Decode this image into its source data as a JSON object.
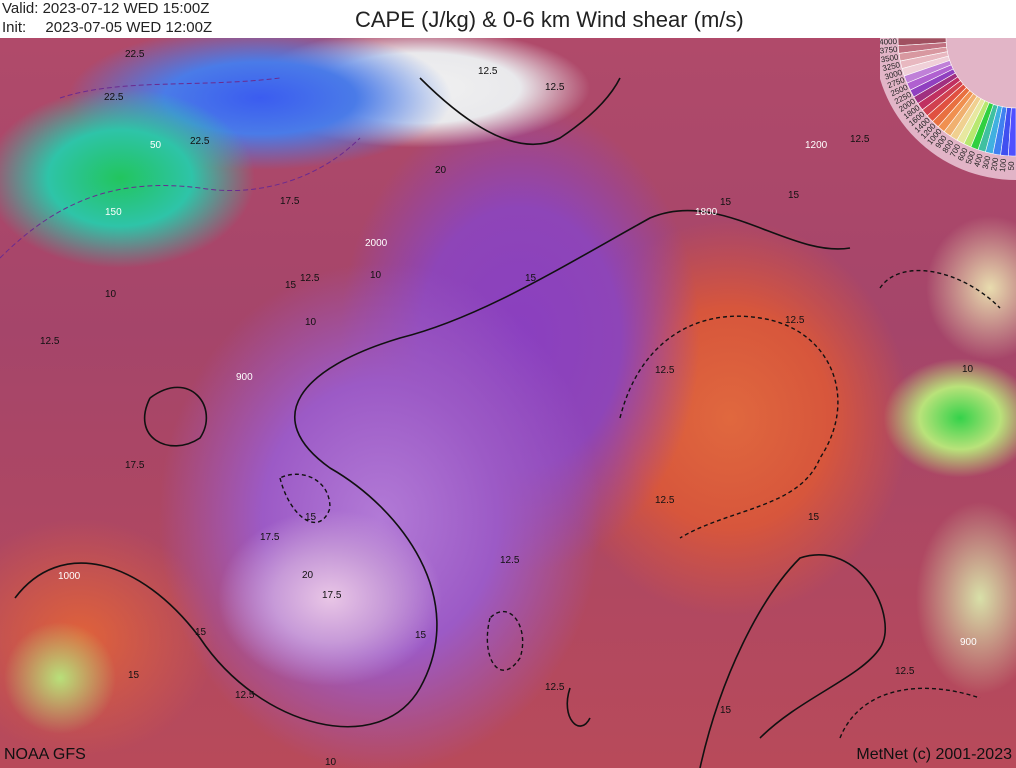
{
  "header": {
    "valid_label": "Valid:",
    "valid_time": "2023-07-12 WED 15:00Z",
    "init_label": "Init:",
    "init_time": "2023-07-05 WED 12:00Z",
    "title": "CAPE (J/kg) & 0-6 km Wind shear (m/s)"
  },
  "legend": {
    "values": [
      "4000",
      "3750",
      "3500",
      "3250",
      "3000",
      "2750",
      "2500",
      "2250",
      "2000",
      "1800",
      "1600",
      "1400",
      "1200",
      "1000",
      "900",
      "800",
      "700",
      "600",
      "500",
      "400",
      "300",
      "200",
      "100",
      "50"
    ],
    "colors": [
      "#a05060",
      "#c07080",
      "#d898a0",
      "#e8b8c0",
      "#f0d0d8",
      "#c080d8",
      "#b060d0",
      "#9040c0",
      "#a03080",
      "#c03060",
      "#d04050",
      "#e05040",
      "#e87040",
      "#f09050",
      "#f0b070",
      "#f0d090",
      "#e8e8a0",
      "#b8e870",
      "#30d040",
      "#40c0a0",
      "#40b0e0",
      "#4080f0",
      "#4050f0",
      "#5050ff"
    ]
  },
  "map": {
    "cape_labels": [
      "50",
      "150",
      "2000",
      "900",
      "1200",
      "1800",
      "1000",
      "900"
    ],
    "shear_labels": [
      "22.5",
      "22.5",
      "22.5",
      "20",
      "17.5",
      "12.5",
      "10",
      "15",
      "12.5",
      "10",
      "15",
      "12.5",
      "12.5",
      "15",
      "12.5",
      "15",
      "12.5",
      "10",
      "15",
      "17.5",
      "17.5",
      "20",
      "17.5",
      "15",
      "12.5",
      "12.5",
      "15",
      "12.5",
      "15",
      "12.5",
      "15",
      "12.5",
      "15",
      "10",
      "12.5",
      "10"
    ]
  },
  "footer": {
    "model": "NOAA GFS",
    "credit": "MetNet (c) 2001-2023"
  }
}
